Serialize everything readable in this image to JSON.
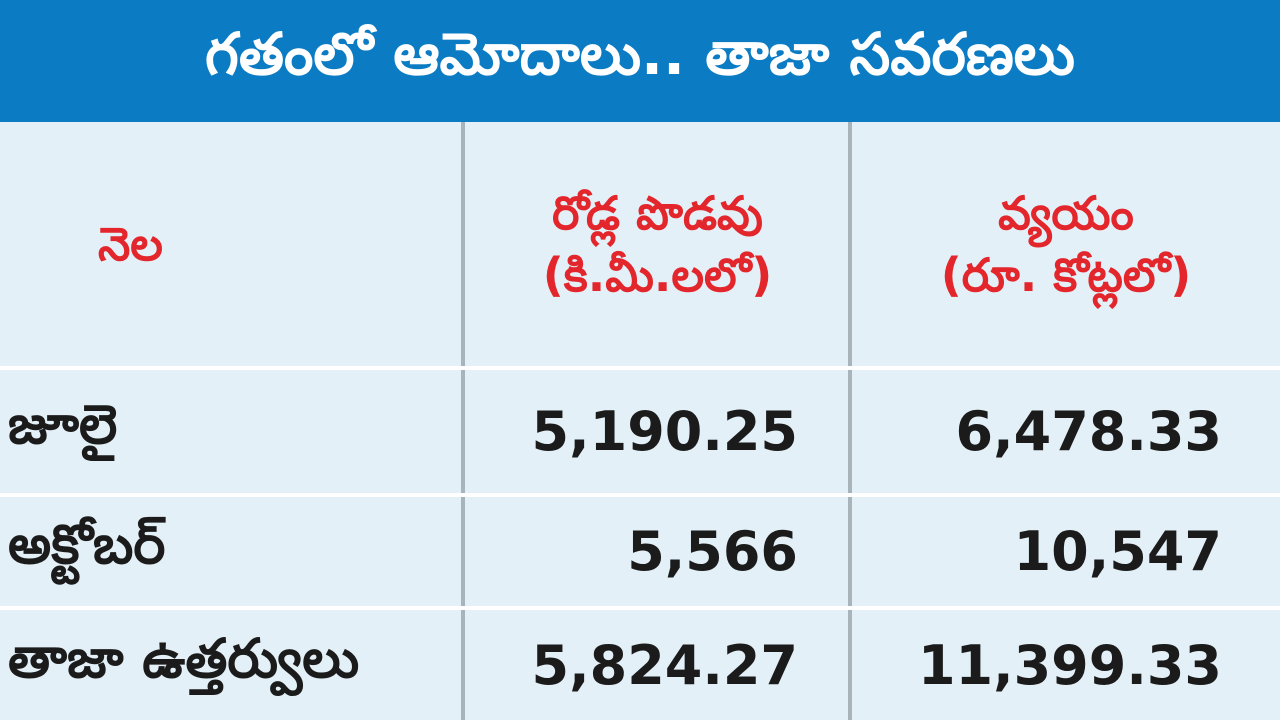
{
  "header": {
    "title": "గతంలో ఆమోదాలు.. తాజా సవరణలు"
  },
  "table": {
    "headers": [
      [
        "నెల"
      ],
      [
        "రోడ్ల పొడవు",
        "(కి.మీ.లలో)"
      ],
      [
        "వ్యయం",
        "(రూ. కోట్లలో)"
      ]
    ],
    "rows": [
      [
        "జూలై",
        "5,190.25",
        "6,478.33"
      ],
      [
        "అక్టోబర్",
        "5,566",
        "10,547"
      ],
      [
        "తాజా ఉత్తర్వులు",
        "5,824.27",
        "11,399.33"
      ]
    ]
  }
}
